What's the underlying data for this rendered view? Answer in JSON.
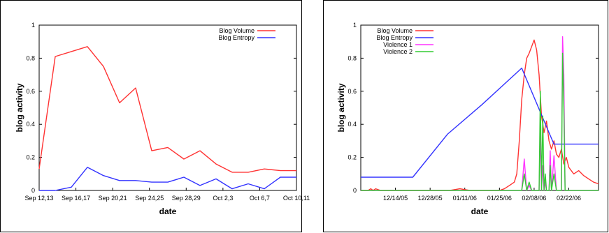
{
  "chart_data": [
    {
      "type": "line",
      "xlabel": "date",
      "ylabel": "blog activity",
      "ylim": [
        0,
        1
      ],
      "y_ticks": [
        "0",
        "0.2",
        "0.4",
        "0.6",
        "0.8",
        "1"
      ],
      "x_ticks": [
        "Sep 12,13",
        "Sep 16,17",
        "Sep 20,21",
        "Sep 24,25",
        "Sep 28,29",
        "Oct 2,3",
        "Oct 6,7",
        "Oct 10,11"
      ],
      "legend_position": "top-right",
      "grid": false,
      "x": [
        0,
        1,
        2,
        3,
        4,
        5,
        6,
        7,
        8,
        9,
        10,
        11,
        12,
        13,
        14,
        15,
        16
      ],
      "series": [
        {
          "name": "Blog Volume",
          "color": "#ff3333",
          "values": [
            0.13,
            0.81,
            0.84,
            0.87,
            0.75,
            0.53,
            0.62,
            0.24,
            0.26,
            0.19,
            0.24,
            0.16,
            0.11,
            0.11,
            0.13,
            0.12,
            0.12
          ]
        },
        {
          "name": "Blog Entropy",
          "color": "#3333ff",
          "values": [
            0.0,
            0.0,
            0.02,
            0.14,
            0.09,
            0.06,
            0.06,
            0.05,
            0.05,
            0.08,
            0.03,
            0.07,
            0.01,
            0.04,
            0.01,
            0.08,
            0.08
          ]
        }
      ]
    },
    {
      "type": "line",
      "xlabel": "date",
      "ylabel": "blog activity",
      "ylim": [
        0,
        1
      ],
      "y_ticks": [
        "0",
        "0.2",
        "0.4",
        "0.6",
        "0.8",
        "1"
      ],
      "x_ticks": [
        "12/14/05",
        "12/28/05",
        "01/11/06",
        "01/25/06",
        "02/08/06",
        "02/22/06"
      ],
      "x_tick_days": [
        14,
        28,
        42,
        56,
        70,
        84
      ],
      "xlim": [
        0,
        96
      ],
      "legend_position": "top-left",
      "grid": false,
      "series": [
        {
          "name": "Blog Volume",
          "color": "#ff3333",
          "x": [
            0,
            3,
            4,
            5,
            6,
            8,
            10,
            12,
            14,
            16,
            20,
            24,
            30,
            36,
            40,
            44,
            48,
            52,
            56,
            58,
            60,
            62,
            63,
            64,
            65,
            66,
            67,
            68,
            69,
            70,
            71,
            72,
            73,
            74,
            75,
            76,
            77,
            78,
            79,
            80,
            81,
            82,
            83,
            84,
            85,
            86,
            88,
            90,
            92,
            94,
            96
          ],
          "values": [
            0,
            0,
            0.01,
            0,
            0.01,
            0,
            0,
            0,
            0,
            0,
            0,
            0,
            0,
            0,
            0.01,
            0,
            0,
            0,
            0,
            0.01,
            0.03,
            0.05,
            0.1,
            0.3,
            0.55,
            0.7,
            0.8,
            0.83,
            0.87,
            0.91,
            0.85,
            0.7,
            0.45,
            0.35,
            0.42,
            0.3,
            0.25,
            0.3,
            0.22,
            0.2,
            0.25,
            0.16,
            0.2,
            0.14,
            0.12,
            0.1,
            0.12,
            0.09,
            0.07,
            0.05,
            0.04
          ]
        },
        {
          "name": "Blog Entropy",
          "color": "#3333ff",
          "x": [
            0,
            21,
            35,
            49,
            65,
            76,
            78,
            96
          ],
          "values": [
            0.08,
            0.08,
            0.34,
            0.52,
            0.74,
            0.35,
            0.28,
            0.28
          ]
        },
        {
          "name": "Violence 1",
          "color": "#ff33ff",
          "x": [
            0,
            65,
            66,
            67,
            68,
            69,
            70,
            71,
            72,
            72.5,
            73,
            73.5,
            74,
            74.5,
            75,
            76,
            76.5,
            77,
            77.5,
            78,
            79,
            79.5,
            80,
            81,
            81.5,
            82,
            82.5,
            83,
            96
          ],
          "values": [
            0,
            0,
            0.19,
            0,
            0.03,
            0,
            0,
            0,
            0,
            0.35,
            0,
            0.15,
            0,
            0.05,
            0,
            0,
            0.24,
            0,
            0.1,
            0.21,
            0,
            0,
            0,
            0,
            0.93,
            0.7,
            0,
            0,
            0
          ]
        },
        {
          "name": "Violence 2",
          "color": "#33cc33",
          "x": [
            0,
            65,
            66,
            67,
            68,
            69,
            70,
            71,
            72,
            72.5,
            73,
            73.5,
            74,
            74.5,
            75,
            76,
            76.5,
            77,
            77.5,
            78,
            79,
            79.5,
            80,
            81,
            81.5,
            82,
            82.5,
            83,
            96
          ],
          "values": [
            0,
            0,
            0.1,
            0,
            0.05,
            0,
            0,
            0,
            0,
            0.6,
            0,
            0.45,
            0,
            0.1,
            0,
            0,
            0.15,
            0,
            0.05,
            0.1,
            0,
            0,
            0,
            0,
            0.83,
            0.5,
            0,
            0,
            0
          ]
        }
      ]
    }
  ]
}
